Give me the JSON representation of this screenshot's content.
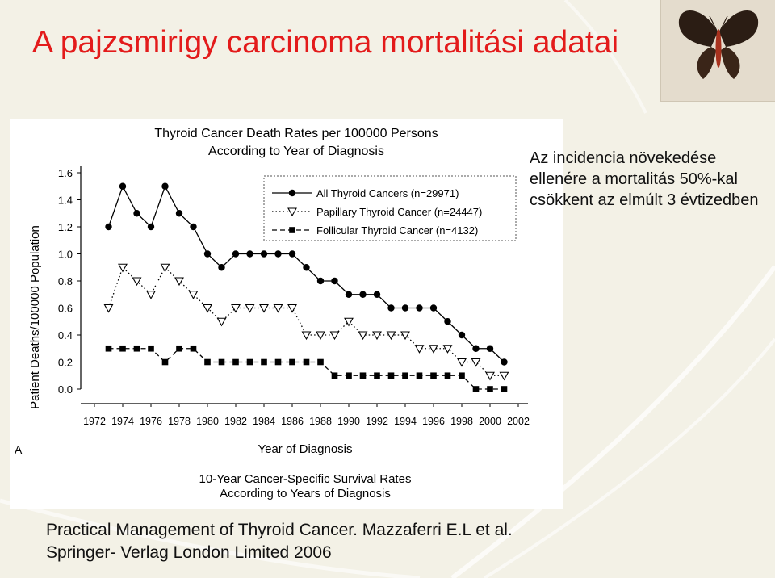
{
  "slide": {
    "title": "A pajzsmirigy carcinoma mortalitási adatai",
    "note": "Az incidencia növekedése ellenére a mortalitás 50%-kal csökkent az elmúlt 3 évtizedben",
    "citation_line1": "Practical Management of Thyroid Cancer. Mazzaferri E.L et al.",
    "citation_line2": "Springer- Verlag London Limited 2006",
    "title_color": "#e31b1b",
    "background_color": "#f3f1e6",
    "decoration_icon": "butterfly-icon"
  },
  "chart_data": {
    "type": "line",
    "title_line1": "Thyroid Cancer Death Rates per 100000 Persons",
    "title_line2": "According to Year of Diagnosis",
    "xlabel": "Year of Diagnosis",
    "ylabel": "Patient Deaths/100000 Population",
    "panel_label": "A",
    "caption_line1": "10-Year Cancer-Specific Survival Rates",
    "caption_line2": "According to Years of Diagnosis",
    "x_ticks": [
      "1972",
      "1974",
      "1976",
      "1978",
      "1980",
      "1982",
      "1984",
      "1986",
      "1988",
      "1990",
      "1992",
      "1994",
      "1996",
      "1998",
      "2000",
      "2002"
    ],
    "y_ticks": [
      "0.0",
      "0.2",
      "0.4",
      "0.6",
      "0.8",
      "1.0",
      "1.2",
      "1.4",
      "1.6"
    ],
    "ylim": [
      0,
      1.6
    ],
    "xlim": [
      1972,
      2002
    ],
    "grid": false,
    "legend_position": "top-right",
    "x": [
      1973,
      1974,
      1975,
      1976,
      1977,
      1978,
      1979,
      1980,
      1981,
      1982,
      1983,
      1984,
      1985,
      1986,
      1987,
      1988,
      1989,
      1990,
      1991,
      1992,
      1993,
      1994,
      1995,
      1996,
      1997,
      1998,
      1999,
      2000,
      2001
    ],
    "series": [
      {
        "name": "All Thyroid Cancers (n=29971)",
        "marker": "circle",
        "line_style": "solid",
        "values": [
          1.2,
          1.5,
          1.3,
          1.2,
          1.5,
          1.3,
          1.2,
          1.0,
          0.9,
          1.0,
          1.0,
          1.0,
          1.0,
          1.0,
          0.9,
          0.8,
          0.8,
          0.7,
          0.7,
          0.7,
          0.6,
          0.6,
          0.6,
          0.6,
          0.5,
          0.4,
          0.3,
          0.3,
          0.2
        ]
      },
      {
        "name": "Papillary Thyroid Cancer (n=24447)",
        "marker": "triangle",
        "line_style": "dotted",
        "values": [
          0.6,
          0.9,
          0.8,
          0.7,
          0.9,
          0.8,
          0.7,
          0.6,
          0.5,
          0.6,
          0.6,
          0.6,
          0.6,
          0.6,
          0.4,
          0.4,
          0.4,
          0.5,
          0.4,
          0.4,
          0.4,
          0.4,
          0.3,
          0.3,
          0.3,
          0.2,
          0.2,
          0.1,
          0.1
        ]
      },
      {
        "name": "Follicular Thyroid Cancer (n=4132)",
        "marker": "square",
        "line_style": "dashed",
        "values": [
          0.3,
          0.3,
          0.3,
          0.3,
          0.2,
          0.3,
          0.3,
          0.2,
          0.2,
          0.2,
          0.2,
          0.2,
          0.2,
          0.2,
          0.2,
          0.2,
          0.1,
          0.1,
          0.1,
          0.1,
          0.1,
          0.1,
          0.1,
          0.1,
          0.1,
          0.1,
          0.0,
          0.0,
          0.0
        ]
      }
    ]
  }
}
